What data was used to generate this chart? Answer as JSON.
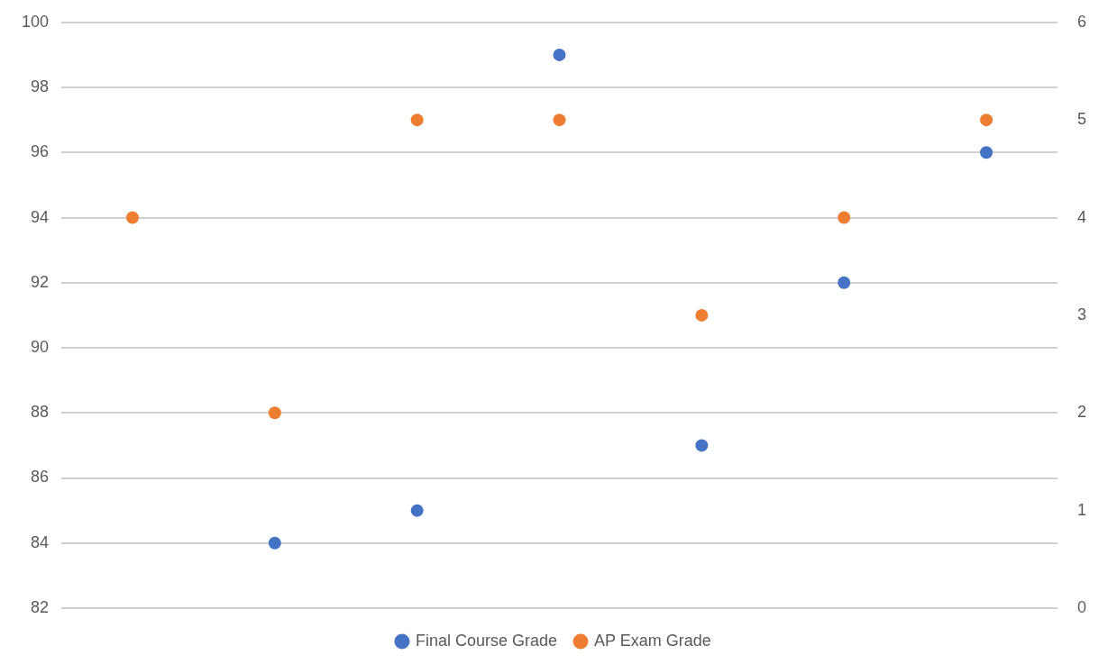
{
  "chart_data": {
    "type": "scatter",
    "categories": [
      null,
      null,
      null,
      null,
      null,
      null,
      null
    ],
    "series": [
      {
        "name": "Final Course Grade",
        "color": "#4472c4",
        "values": [
          null,
          84,
          85,
          99,
          87,
          92,
          96
        ]
      },
      {
        "name": "AP Exam Grade",
        "color": "#ed7d31",
        "axis": "y2",
        "values": [
          4,
          2,
          5,
          5,
          3,
          4,
          5
        ]
      }
    ],
    "ylim": [
      82,
      100
    ],
    "yticks": [
      82,
      84,
      86,
      88,
      90,
      92,
      94,
      96,
      98,
      100
    ],
    "y2lim": [
      0,
      6
    ],
    "y2ticks": [
      0,
      1,
      2,
      3,
      4,
      5,
      6
    ],
    "grid": "y",
    "legend": "bottom",
    "marker": "circle",
    "tick_labels": "y"
  }
}
